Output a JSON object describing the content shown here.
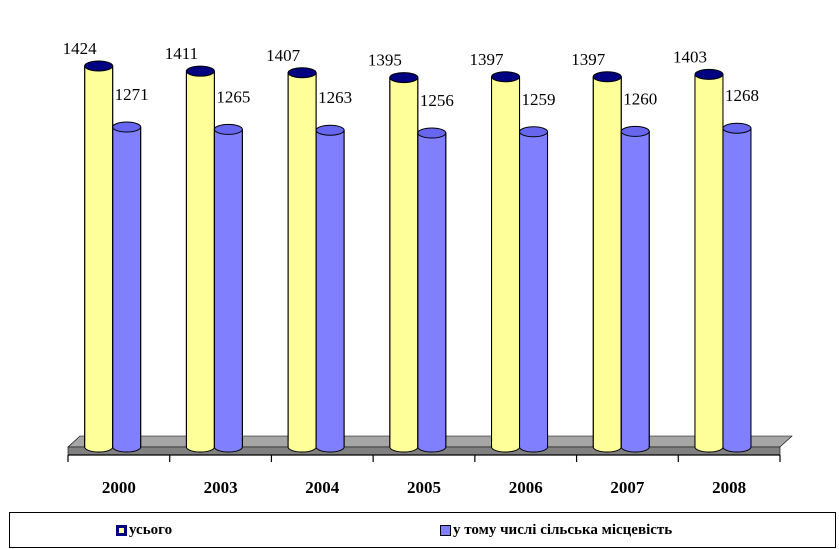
{
  "chart_data": {
    "type": "bar",
    "categories": [
      "2000",
      "2003",
      "2004",
      "2005",
      "2006",
      "2007",
      "2008"
    ],
    "series": [
      {
        "name": "усього",
        "values": [
          1424,
          1411,
          1407,
          1395,
          1397,
          1397,
          1403
        ],
        "color": "#ffff99",
        "cap_color": "#000080"
      },
      {
        "name": "у тому числі сільська місцевість",
        "values": [
          1271,
          1265,
          1263,
          1256,
          1259,
          1260,
          1268
        ],
        "color": "#8080ff",
        "cap_color": "#6666ee"
      }
    ],
    "title": "",
    "xlabel": "",
    "ylabel": "",
    "grid": false,
    "legend": "bottom",
    "floor_color": "#808080"
  }
}
